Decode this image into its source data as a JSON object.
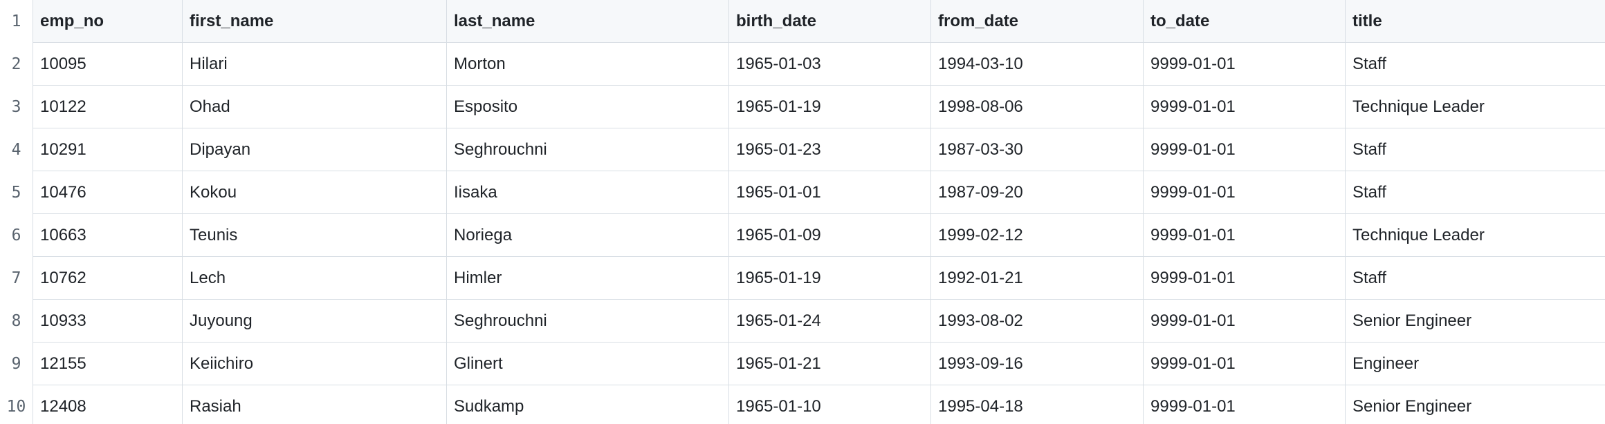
{
  "table": {
    "headers": [
      "emp_no",
      "first_name",
      "last_name",
      "birth_date",
      "from_date",
      "to_date",
      "title"
    ],
    "line_numbers": [
      "1",
      "2",
      "3",
      "4",
      "5",
      "6",
      "7",
      "8",
      "9",
      "10"
    ],
    "rows": [
      [
        "10095",
        "Hilari",
        "Morton",
        "1965-01-03",
        "1994-03-10",
        "9999-01-01",
        "Staff"
      ],
      [
        "10122",
        "Ohad",
        "Esposito",
        "1965-01-19",
        "1998-08-06",
        "9999-01-01",
        "Technique Leader"
      ],
      [
        "10291",
        "Dipayan",
        "Seghrouchni",
        "1965-01-23",
        "1987-03-30",
        "9999-01-01",
        "Staff"
      ],
      [
        "10476",
        "Kokou",
        "Iisaka",
        "1965-01-01",
        "1987-09-20",
        "9999-01-01",
        "Staff"
      ],
      [
        "10663",
        "Teunis",
        "Noriega",
        "1965-01-09",
        "1999-02-12",
        "9999-01-01",
        "Technique Leader"
      ],
      [
        "10762",
        "Lech",
        "Himler",
        "1965-01-19",
        "1992-01-21",
        "9999-01-01",
        "Staff"
      ],
      [
        "10933",
        "Juyoung",
        "Seghrouchni",
        "1965-01-24",
        "1993-08-02",
        "9999-01-01",
        "Senior Engineer"
      ],
      [
        "12155",
        "Keiichiro",
        "Glinert",
        "1965-01-21",
        "1993-09-16",
        "9999-01-01",
        "Engineer"
      ],
      [
        "12408",
        "Rasiah",
        "Sudkamp",
        "1965-01-10",
        "1995-04-18",
        "9999-01-01",
        "Senior Engineer"
      ]
    ]
  }
}
